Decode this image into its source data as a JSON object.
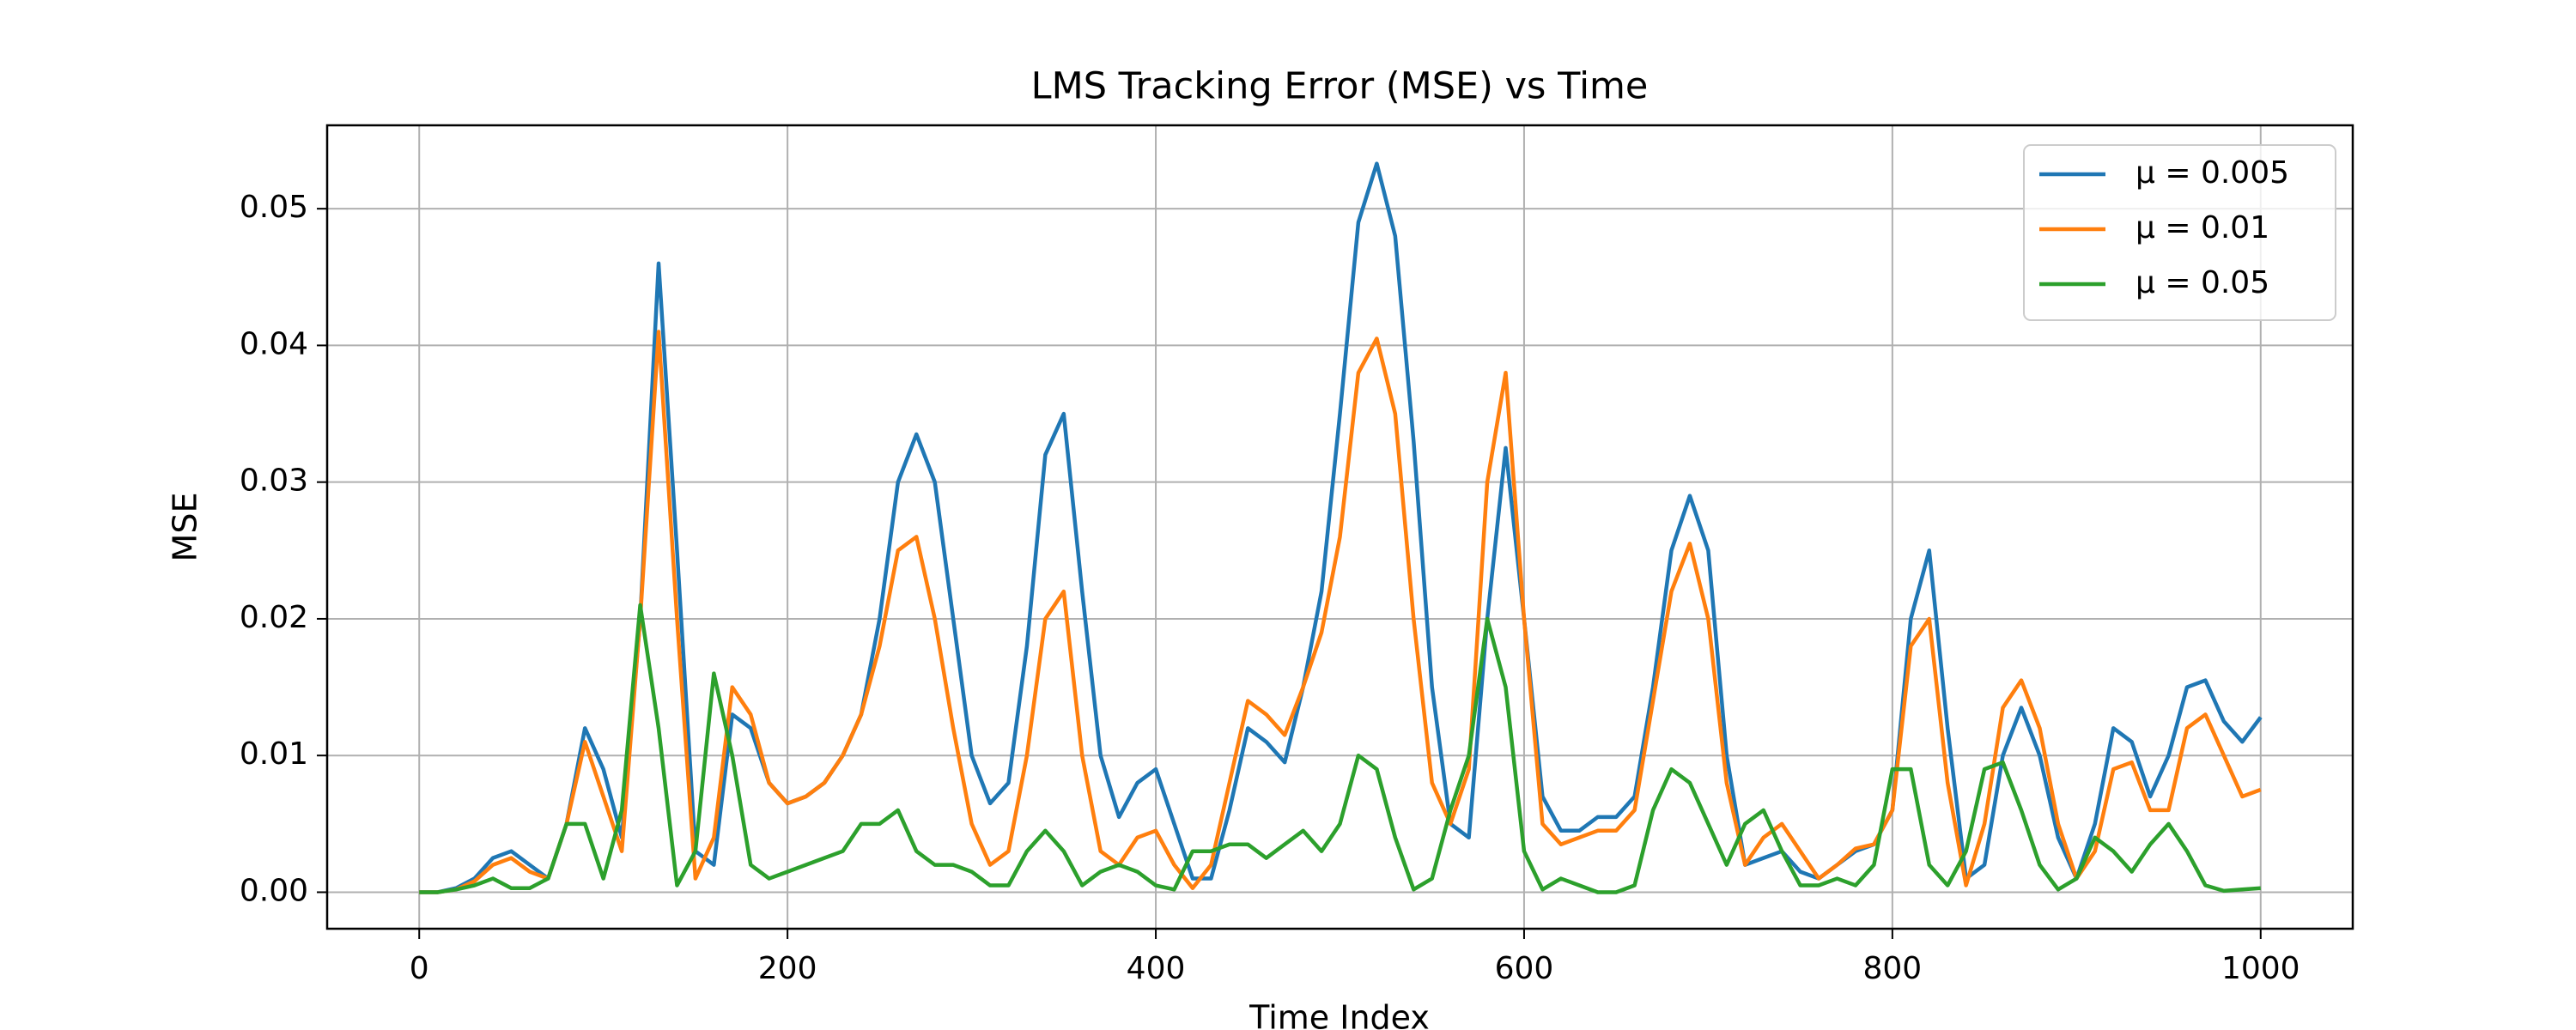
{
  "chart_data": {
    "type": "line",
    "title": "LMS Tracking Error (MSE) vs Time",
    "xlabel": "Time Index",
    "ylabel": "MSE",
    "x": [
      0,
      10,
      20,
      30,
      40,
      50,
      60,
      70,
      80,
      90,
      100,
      110,
      120,
      130,
      140,
      150,
      160,
      170,
      180,
      190,
      200,
      210,
      220,
      230,
      240,
      250,
      260,
      270,
      280,
      290,
      300,
      310,
      320,
      330,
      340,
      350,
      360,
      370,
      380,
      390,
      400,
      410,
      420,
      430,
      440,
      450,
      460,
      470,
      480,
      490,
      500,
      510,
      520,
      530,
      540,
      550,
      560,
      570,
      580,
      590,
      600,
      610,
      620,
      630,
      640,
      650,
      660,
      670,
      680,
      690,
      700,
      710,
      720,
      730,
      740,
      750,
      760,
      770,
      780,
      790,
      800,
      810,
      820,
      830,
      840,
      850,
      860,
      870,
      880,
      890,
      900,
      910,
      920,
      930,
      940,
      950,
      960,
      970,
      980,
      990,
      1000
    ],
    "series": [
      {
        "name": "μ = 0.005",
        "color": "#1f77b4",
        "values": [
          0,
          0,
          0.0003,
          0.001,
          0.0025,
          0.003,
          0.002,
          0.001,
          0.005,
          0.012,
          0.009,
          0.004,
          0.02,
          0.046,
          0.025,
          0.003,
          0.002,
          0.013,
          0.012,
          0.008,
          0.0065,
          0.007,
          0.008,
          0.01,
          0.013,
          0.02,
          0.03,
          0.0335,
          0.03,
          0.02,
          0.01,
          0.0065,
          0.008,
          0.018,
          0.032,
          0.035,
          0.022,
          0.01,
          0.0055,
          0.008,
          0.009,
          0.005,
          0.001,
          0.001,
          0.006,
          0.012,
          0.011,
          0.0095,
          0.015,
          0.022,
          0.035,
          0.049,
          0.0533,
          0.048,
          0.033,
          0.015,
          0.005,
          0.004,
          0.02,
          0.0325,
          0.02,
          0.007,
          0.0045,
          0.0045,
          0.0055,
          0.0055,
          0.007,
          0.015,
          0.025,
          0.029,
          0.025,
          0.01,
          0.002,
          0.0025,
          0.003,
          0.0015,
          0.001,
          0.002,
          0.003,
          0.0035,
          0.006,
          0.02,
          0.025,
          0.012,
          0.001,
          0.002,
          0.01,
          0.0135,
          0.01,
          0.004,
          0.001,
          0.005,
          0.012,
          0.011,
          0.007,
          0.01,
          0.015,
          0.0155,
          0.0125,
          0.011,
          0.0128
        ]
      },
      {
        "name": "μ = 0.01",
        "color": "#ff7f0e",
        "values": [
          0,
          0,
          0.0002,
          0.0008,
          0.002,
          0.0025,
          0.0015,
          0.001,
          0.005,
          0.011,
          0.007,
          0.003,
          0.02,
          0.041,
          0.02,
          0.001,
          0.004,
          0.015,
          0.013,
          0.008,
          0.0065,
          0.007,
          0.008,
          0.01,
          0.013,
          0.018,
          0.025,
          0.026,
          0.02,
          0.012,
          0.005,
          0.002,
          0.003,
          0.01,
          0.02,
          0.022,
          0.01,
          0.003,
          0.002,
          0.004,
          0.0045,
          0.002,
          0.0003,
          0.002,
          0.008,
          0.014,
          0.013,
          0.0115,
          0.015,
          0.019,
          0.026,
          0.038,
          0.0405,
          0.035,
          0.02,
          0.008,
          0.005,
          0.009,
          0.03,
          0.038,
          0.02,
          0.005,
          0.0035,
          0.004,
          0.0045,
          0.0045,
          0.006,
          0.014,
          0.022,
          0.0255,
          0.02,
          0.008,
          0.002,
          0.004,
          0.005,
          0.003,
          0.001,
          0.002,
          0.0032,
          0.0035,
          0.006,
          0.018,
          0.02,
          0.008,
          0.0005,
          0.005,
          0.0135,
          0.0155,
          0.012,
          0.005,
          0.001,
          0.003,
          0.009,
          0.0095,
          0.006,
          0.006,
          0.012,
          0.013,
          0.01,
          0.007,
          0.0075
        ]
      },
      {
        "name": "μ = 0.05",
        "color": "#2ca02c",
        "values": [
          0,
          0,
          0.0002,
          0.0005,
          0.001,
          0.0003,
          0.0003,
          0.001,
          0.005,
          0.005,
          0.001,
          0.006,
          0.021,
          0.012,
          0.0005,
          0.003,
          0.016,
          0.01,
          0.002,
          0.001,
          0.0015,
          0.002,
          0.0025,
          0.003,
          0.005,
          0.005,
          0.006,
          0.003,
          0.002,
          0.002,
          0.0015,
          0.0005,
          0.0005,
          0.003,
          0.0045,
          0.003,
          0.0005,
          0.0015,
          0.002,
          0.0015,
          0.0005,
          0.0002,
          0.003,
          0.003,
          0.0035,
          0.0035,
          0.0025,
          0.0035,
          0.0045,
          0.003,
          0.005,
          0.01,
          0.009,
          0.004,
          0.0002,
          0.001,
          0.006,
          0.01,
          0.02,
          0.015,
          0.003,
          0.0002,
          0.001,
          0.0005,
          0,
          0,
          0.0005,
          0.006,
          0.009,
          0.008,
          0.005,
          0.002,
          0.005,
          0.006,
          0.003,
          0.0005,
          0.0005,
          0.001,
          0.0005,
          0.002,
          0.009,
          0.009,
          0.002,
          0.0005,
          0.003,
          0.009,
          0.0095,
          0.006,
          0.002,
          0.0002,
          0.001,
          0.004,
          0.003,
          0.0015,
          0.0035,
          0.005,
          0.003,
          0.0005,
          0.0001,
          0.0002,
          0.0003
        ]
      }
    ],
    "xlim": [
      -50,
      1050
    ],
    "ylim": [
      -0.00267,
      0.0561
    ],
    "xticks": [
      0,
      200,
      400,
      600,
      800,
      1000
    ],
    "yticks": [
      {
        "value": 0,
        "label": "0.00"
      },
      {
        "value": 0.01,
        "label": "0.01"
      },
      {
        "value": 0.02,
        "label": "0.02"
      },
      {
        "value": 0.03,
        "label": "0.03"
      },
      {
        "value": 0.04,
        "label": "0.04"
      },
      {
        "value": 0.05,
        "label": "0.05"
      }
    ],
    "grid": true,
    "legend": "upper right"
  }
}
